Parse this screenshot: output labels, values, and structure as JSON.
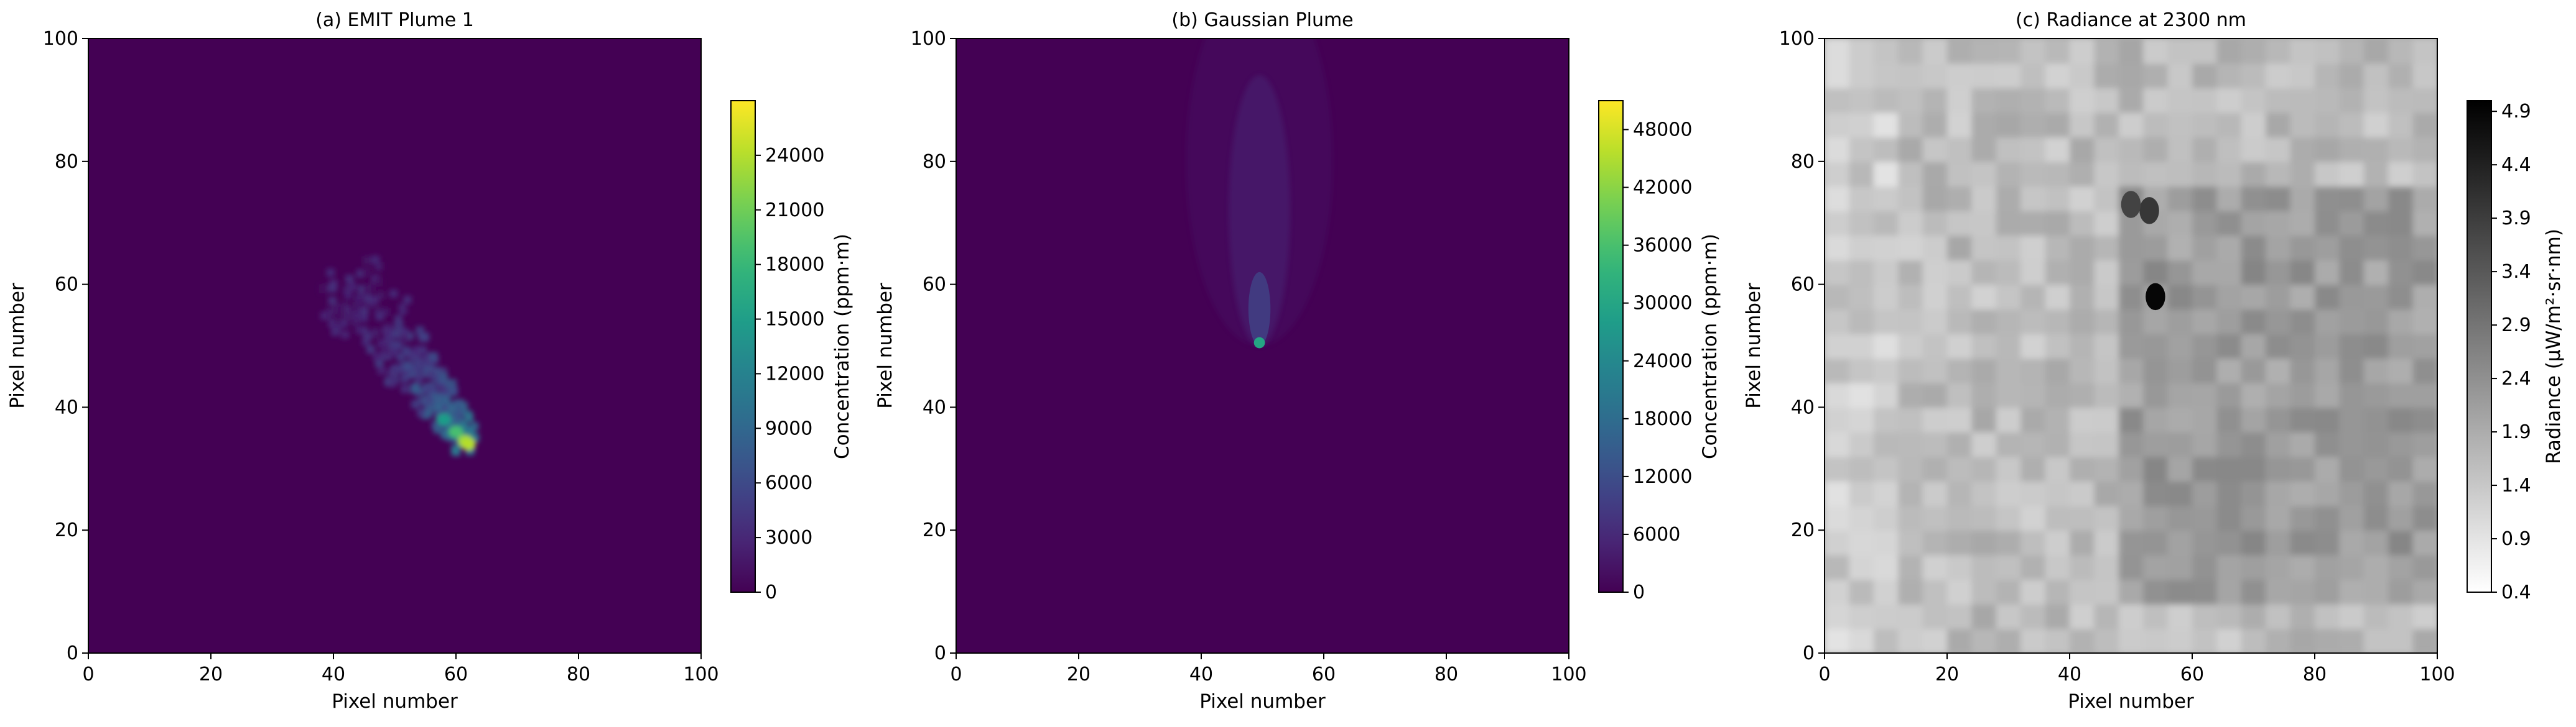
{
  "chart_data": [
    {
      "type": "heatmap",
      "title": "(a) EMIT Plume 1",
      "xlabel": "Pixel number",
      "ylabel": "Pixel number",
      "xlim": [
        0,
        100
      ],
      "ylim": [
        0,
        100
      ],
      "xticks": [
        0,
        20,
        40,
        60,
        80,
        100
      ],
      "yticks": [
        0,
        20,
        40,
        60,
        80,
        100
      ],
      "grid": false,
      "colormap": "viridis",
      "colorbar": {
        "label": "Concentration (ppm·m)",
        "range": [
          0,
          27000
        ],
        "ticks": [
          0,
          3000,
          6000,
          9000,
          12000,
          15000,
          18000,
          21000,
          24000
        ]
      },
      "background_value": 0,
      "plume": {
        "description": "elongated patchy plume oriented from upper-left to lower-right",
        "extent_x": [
          35,
          64
        ],
        "extent_y": [
          32,
          67
        ],
        "peak": {
          "x": 62,
          "y": 34,
          "value": 24000
        }
      }
    },
    {
      "type": "heatmap",
      "title": "(b) Gaussian Plume",
      "xlabel": "Pixel number",
      "ylabel": "Pixel number",
      "xlim": [
        0,
        100
      ],
      "ylim": [
        0,
        100
      ],
      "xticks": [
        0,
        20,
        40,
        60,
        80,
        100
      ],
      "yticks": [
        0,
        20,
        40,
        60,
        80,
        100
      ],
      "grid": false,
      "colormap": "viridis",
      "colorbar": {
        "label": "Concentration (ppm·m)",
        "range": [
          0,
          51000
        ],
        "ticks": [
          0,
          6000,
          12000,
          18000,
          24000,
          30000,
          36000,
          42000,
          48000
        ]
      },
      "background_value": 0,
      "plume": {
        "description": "narrow gaussian plume spreading upward from a point source",
        "source": {
          "x": 49.5,
          "y": 50.5,
          "value": 30000
        },
        "direction": "up",
        "extent_y": [
          50,
          100
        ]
      }
    },
    {
      "type": "heatmap",
      "title": "(c) Radiance at 2300 nm",
      "xlabel": "Pixel number",
      "ylabel": "Pixel number",
      "xlim": [
        0,
        100
      ],
      "ylim": [
        0,
        100
      ],
      "xticks": [
        0,
        20,
        40,
        60,
        80,
        100
      ],
      "yticks": [
        0,
        20,
        40,
        60,
        80,
        100
      ],
      "grid": false,
      "colormap": "gray_r",
      "colorbar": {
        "label": "Radiance (μW/m²·sr·nm)",
        "range": [
          0.4,
          5.0
        ],
        "ticks": [
          0.4,
          0.9,
          1.4,
          1.9,
          2.4,
          2.9,
          3.4,
          3.9,
          4.4,
          4.9
        ],
        "tick_labels": [
          "0.4",
          "0.9",
          "1.4",
          "1.9",
          "2.4",
          "2.9",
          "3.4",
          "3.9",
          "4.4",
          "4.9"
        ]
      },
      "features": [
        {
          "description": "dark spot",
          "x": 54,
          "y": 58,
          "value": 4.9
        },
        {
          "description": "dark spot",
          "x": 53,
          "y": 72,
          "value": 4.0
        },
        {
          "description": "dark spot",
          "x": 50,
          "y": 73,
          "value": 3.8
        }
      ]
    }
  ]
}
